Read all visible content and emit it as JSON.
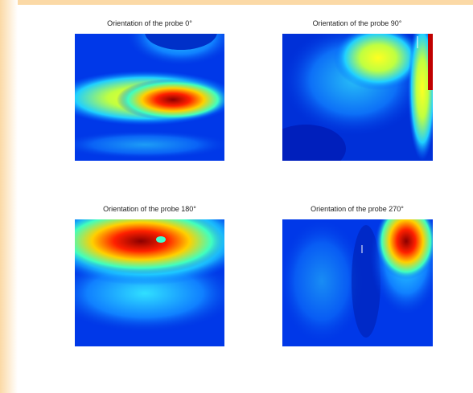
{
  "panels": [
    {
      "title": "Orientation of the probe 0°"
    },
    {
      "title": "Orientation of the probe 90°"
    },
    {
      "title": "Orientation of the probe 180°"
    },
    {
      "title": "Orientation of the probe 270°"
    }
  ]
}
